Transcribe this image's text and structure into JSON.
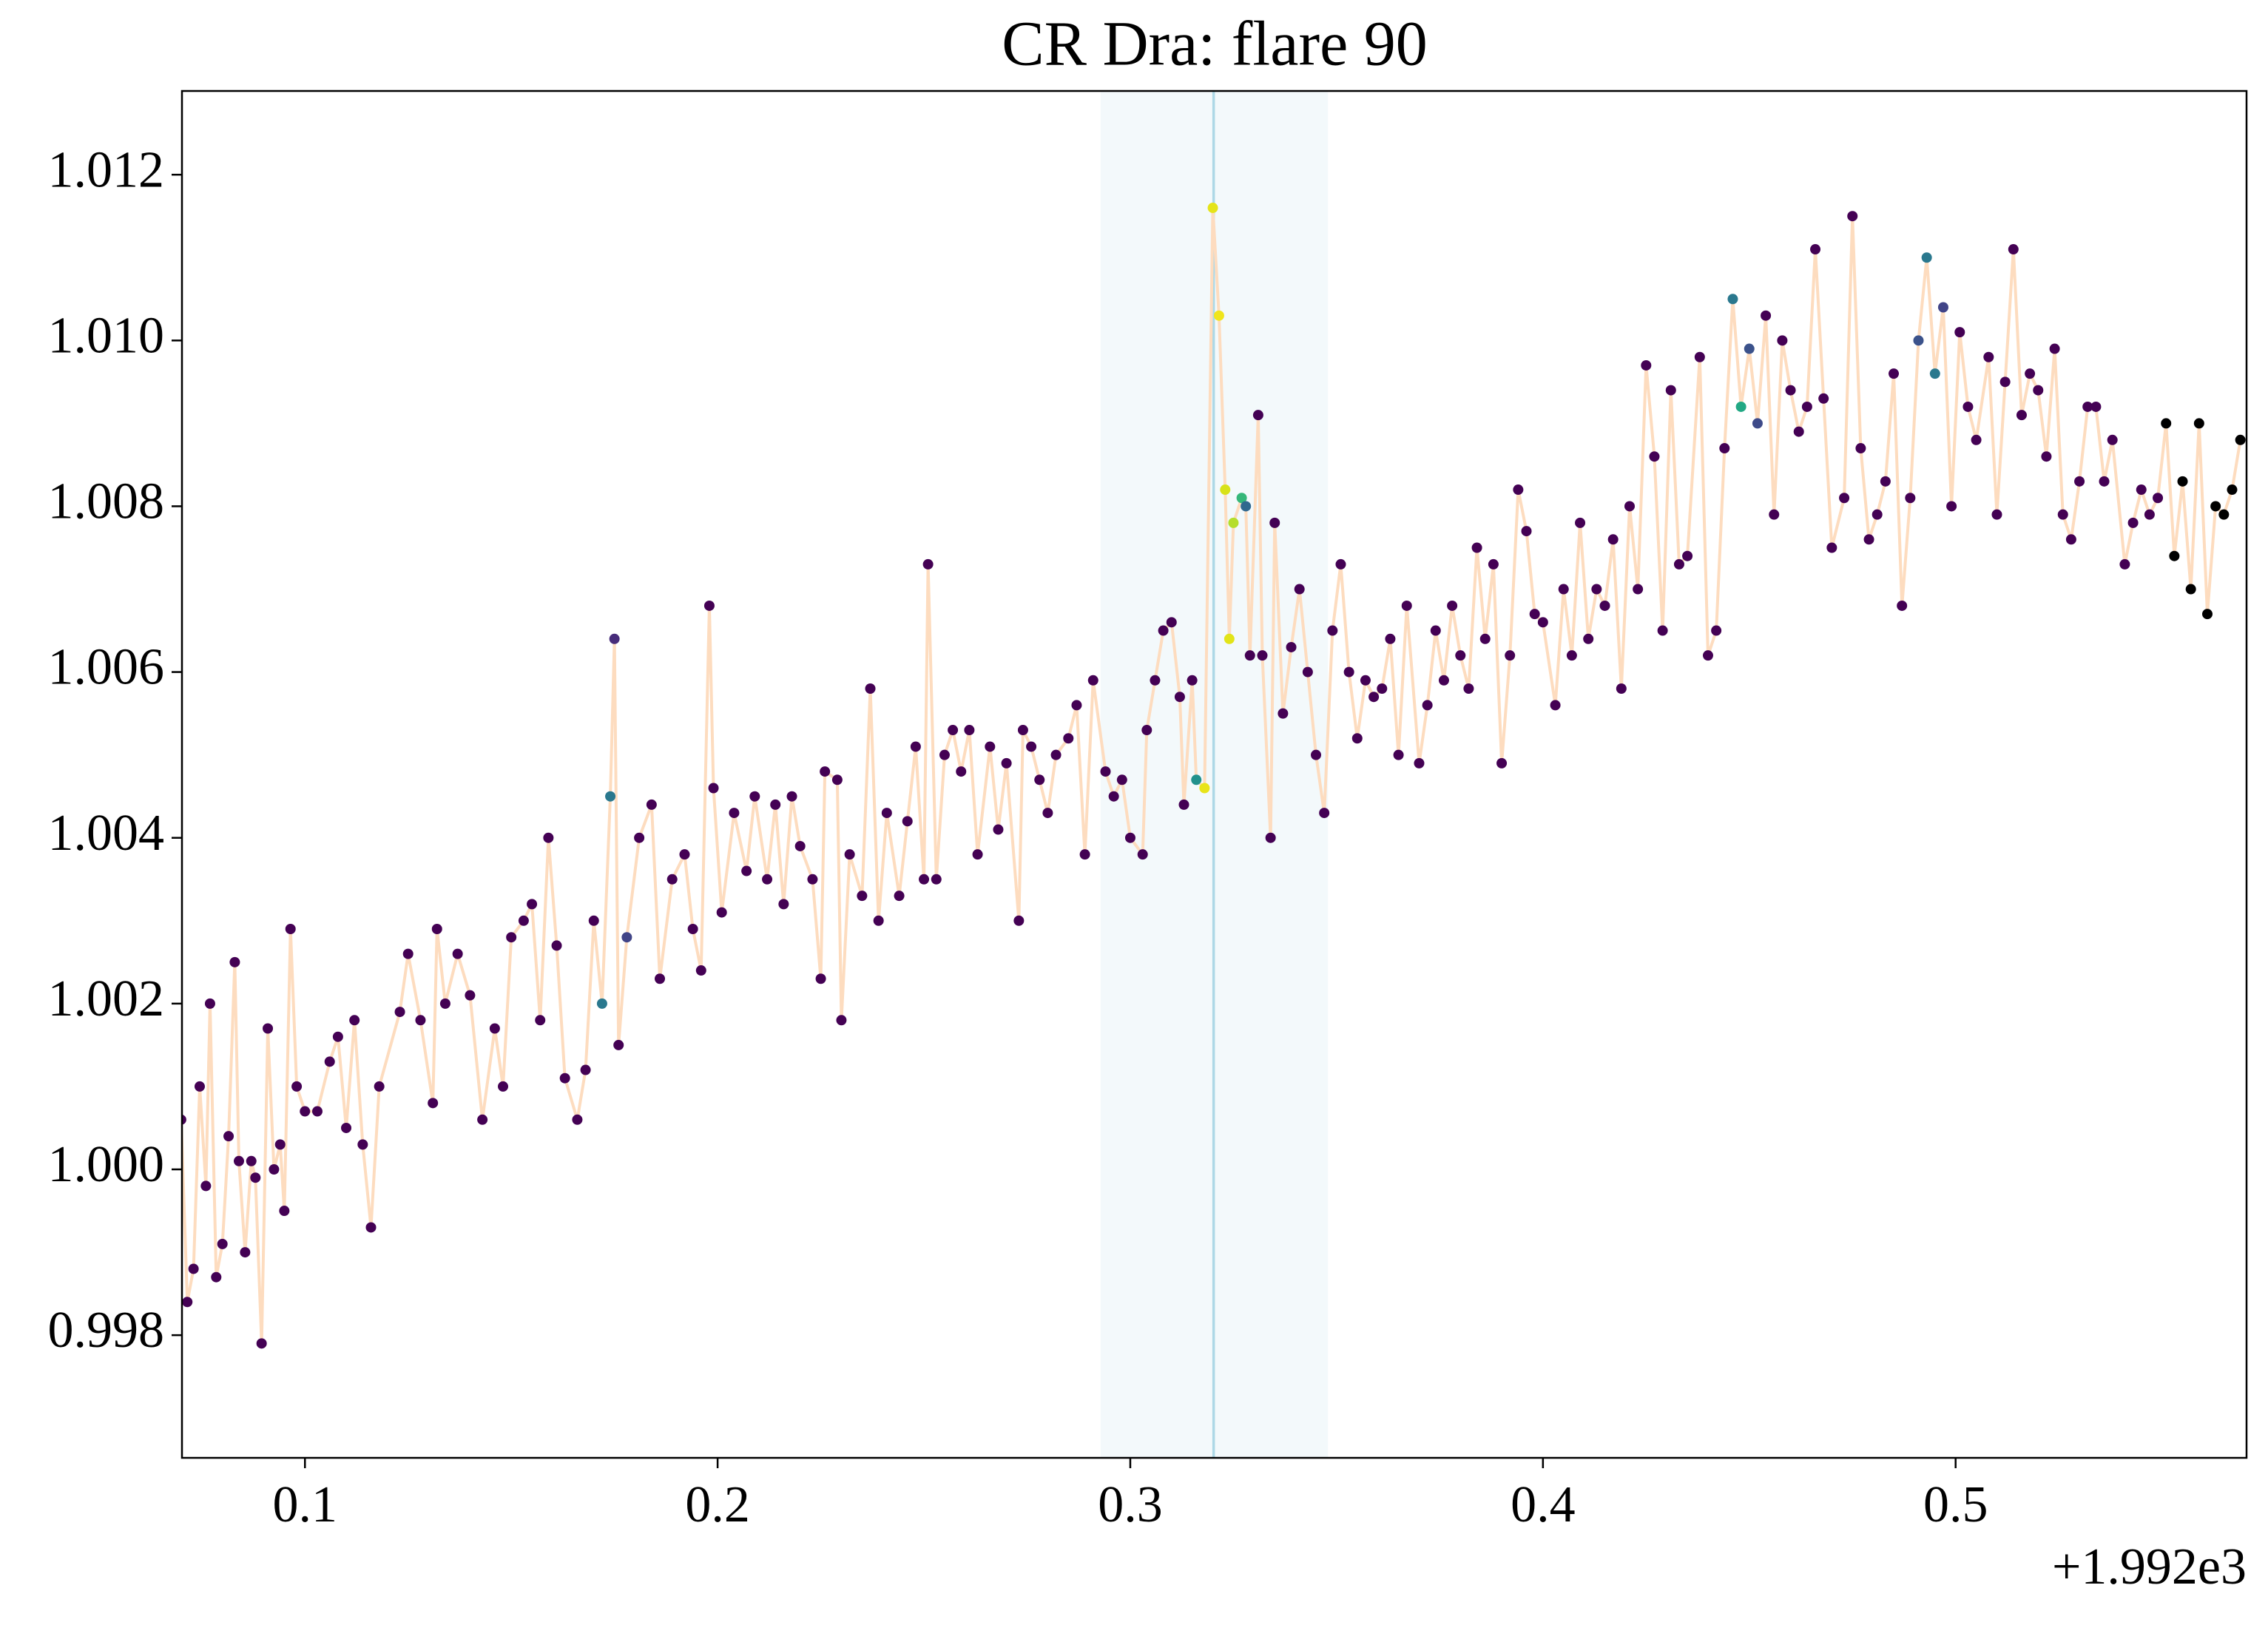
{
  "chart_data": {
    "type": "scatter",
    "title": "CR Dra: flare 90",
    "x_offset_label": "+1.992e3",
    "x": [
      0.07,
      0.0715,
      0.073,
      0.0745,
      0.076,
      0.077,
      0.0785,
      0.08,
      0.0815,
      0.083,
      0.084,
      0.0855,
      0.087,
      0.088,
      0.0895,
      0.091,
      0.0925,
      0.094,
      0.095,
      0.0965,
      0.098,
      0.1,
      0.103,
      0.106,
      0.108,
      0.11,
      0.112,
      0.114,
      0.116,
      0.118,
      0.123,
      0.125,
      0.128,
      0.131,
      0.132,
      0.134,
      0.137,
      0.14,
      0.143,
      0.146,
      0.148,
      0.15,
      0.153,
      0.155,
      0.157,
      0.159,
      0.161,
      0.163,
      0.166,
      0.168,
      0.17,
      0.172,
      0.174,
      0.175,
      0.176,
      0.178,
      0.181,
      0.184,
      0.186,
      0.189,
      0.192,
      0.194,
      0.196,
      0.198,
      0.199,
      0.201,
      0.204,
      0.207,
      0.209,
      0.212,
      0.214,
      0.216,
      0.218,
      0.22,
      0.223,
      0.225,
      0.226,
      0.229,
      0.23,
      0.232,
      0.235,
      0.237,
      0.239,
      0.241,
      0.244,
      0.246,
      0.248,
      0.25,
      0.251,
      0.253,
      0.255,
      0.257,
      0.259,
      0.261,
      0.263,
      0.266,
      0.268,
      0.27,
      0.273,
      0.274,
      0.276,
      0.278,
      0.28,
      0.282,
      0.285,
      0.287,
      0.289,
      0.291,
      0.294,
      0.296,
      0.298,
      0.3,
      0.303,
      0.304,
      0.306,
      0.308,
      0.31,
      0.312,
      0.313,
      0.315,
      0.316,
      0.318,
      0.32,
      0.3215,
      0.323,
      0.324,
      0.325,
      0.327,
      0.328,
      0.329,
      0.331,
      0.332,
      0.334,
      0.335,
      0.337,
      0.339,
      0.341,
      0.343,
      0.345,
      0.347,
      0.349,
      0.351,
      0.353,
      0.355,
      0.357,
      0.359,
      0.361,
      0.363,
      0.365,
      0.367,
      0.37,
      0.372,
      0.374,
      0.376,
      0.378,
      0.38,
      0.382,
      0.384,
      0.386,
      0.388,
      0.39,
      0.392,
      0.394,
      0.396,
      0.398,
      0.4,
      0.403,
      0.405,
      0.407,
      0.409,
      0.411,
      0.413,
      0.415,
      0.417,
      0.419,
      0.421,
      0.423,
      0.425,
      0.427,
      0.429,
      0.431,
      0.433,
      0.435,
      0.438,
      0.44,
      0.442,
      0.444,
      0.446,
      0.448,
      0.45,
      0.452,
      0.454,
      0.456,
      0.458,
      0.46,
      0.462,
      0.464,
      0.466,
      0.468,
      0.47,
      0.473,
      0.475,
      0.477,
      0.479,
      0.481,
      0.483,
      0.485,
      0.487,
      0.489,
      0.491,
      0.493,
      0.495,
      0.497,
      0.499,
      0.501,
      0.503,
      0.505,
      0.508,
      0.51,
      0.512,
      0.514,
      0.516,
      0.518,
      0.52,
      0.522,
      0.524,
      0.526,
      0.528,
      0.53,
      0.532,
      0.534,
      0.536,
      0.538,
      0.541,
      0.543,
      0.545,
      0.547,
      0.549,
      0.551,
      0.553,
      0.555,
      0.557,
      0.559,
      0.561,
      0.563,
      0.565,
      0.567,
      0.569
    ],
    "values": [
      1.0006,
      0.9984,
      0.9988,
      1.001,
      0.9998,
      1.002,
      0.9987,
      0.9991,
      1.0004,
      1.0025,
      1.0001,
      0.999,
      1.0001,
      0.9999,
      0.9979,
      1.0017,
      1.0,
      1.0003,
      0.9995,
      1.0029,
      1.001,
      1.0007,
      1.0007,
      1.0013,
      1.0016,
      1.0005,
      1.0018,
      1.0003,
      0.9993,
      1.001,
      1.0019,
      1.0026,
      1.0018,
      1.0008,
      1.0029,
      1.002,
      1.0026,
      1.0021,
      1.0006,
      1.0017,
      1.001,
      1.0028,
      1.003,
      1.0032,
      1.0018,
      1.004,
      1.0027,
      1.0011,
      1.0006,
      1.0012,
      1.003,
      1.002,
      1.0045,
      1.0064,
      1.0015,
      1.0028,
      1.004,
      1.0044,
      1.0023,
      1.0035,
      1.0038,
      1.0029,
      1.0024,
      1.0068,
      1.0046,
      1.0031,
      1.0043,
      1.0036,
      1.0045,
      1.0035,
      1.0044,
      1.0032,
      1.0045,
      1.0039,
      1.0035,
      1.0023,
      1.0048,
      1.0047,
      1.0018,
      1.0038,
      1.0033,
      1.0058,
      1.003,
      1.0043,
      1.0033,
      1.0042,
      1.0051,
      1.0035,
      1.0073,
      1.0035,
      1.005,
      1.0053,
      1.0048,
      1.0053,
      1.0038,
      1.0051,
      1.0041,
      1.0049,
      1.003,
      1.0053,
      1.0051,
      1.0047,
      1.0043,
      1.005,
      1.0052,
      1.0056,
      1.0038,
      1.0059,
      1.0048,
      1.0045,
      1.0047,
      1.004,
      1.0038,
      1.0053,
      1.0059,
      1.0065,
      1.0066,
      1.0057,
      1.0044,
      1.0059,
      1.0047,
      1.0046,
      1.0116,
      1.0103,
      1.0082,
      1.0064,
      1.0078,
      1.0081,
      1.008,
      1.0062,
      1.0091,
      1.0062,
      1.004,
      1.0078,
      1.0055,
      1.0063,
      1.007,
      1.006,
      1.005,
      1.0043,
      1.0065,
      1.0073,
      1.006,
      1.0052,
      1.0059,
      1.0057,
      1.0058,
      1.0064,
      1.005,
      1.0068,
      1.0049,
      1.0056,
      1.0065,
      1.0059,
      1.0068,
      1.0062,
      1.0058,
      1.0075,
      1.0064,
      1.0073,
      1.0049,
      1.0062,
      1.0082,
      1.0077,
      1.0067,
      1.0066,
      1.0056,
      1.007,
      1.0062,
      1.0078,
      1.0064,
      1.007,
      1.0068,
      1.0076,
      1.0058,
      1.008,
      1.007,
      1.0097,
      1.0086,
      1.0065,
      1.0094,
      1.0073,
      1.0074,
      1.0098,
      1.0062,
      1.0065,
      1.0087,
      1.0105,
      1.0092,
      1.0099,
      1.009,
      1.0103,
      1.0079,
      1.01,
      1.0094,
      1.0089,
      1.0092,
      1.0111,
      1.0093,
      1.0075,
      1.0081,
      1.0115,
      1.0087,
      1.0076,
      1.0079,
      1.0083,
      1.0096,
      1.0068,
      1.0081,
      1.01,
      1.011,
      1.0096,
      1.0104,
      1.008,
      1.0101,
      1.0092,
      1.0088,
      1.0098,
      1.0079,
      1.0095,
      1.0111,
      1.0091,
      1.0096,
      1.0094,
      1.0086,
      1.0099,
      1.0079,
      1.0076,
      1.0083,
      1.0092,
      1.0092,
      1.0083,
      1.0088,
      1.0073,
      1.0078,
      1.0082,
      1.0079,
      1.0081,
      1.009,
      1.0074,
      1.0083,
      1.007,
      1.009,
      1.0067,
      1.008,
      1.0079,
      1.0082,
      1.0088
    ],
    "point_colors": [
      "#440154",
      "#440154",
      "#440154",
      "#440154",
      "#440154",
      "#440154",
      "#440154",
      "#440154",
      "#440154",
      "#440154",
      "#440154",
      "#440154",
      "#440154",
      "#440154",
      "#440154",
      "#440154",
      "#440154",
      "#440154",
      "#440154",
      "#440154",
      "#440154",
      "#440154",
      "#440154",
      "#440154",
      "#440154",
      "#440154",
      "#440154",
      "#440154",
      "#440154",
      "#440154",
      "#440154",
      "#440154",
      "#440154",
      "#440154",
      "#440154",
      "#440154",
      "#440154",
      "#440154",
      "#440154",
      "#440154",
      "#440154",
      "#440154",
      "#440154",
      "#440154",
      "#440154",
      "#440154",
      "#440154",
      "#440154",
      "#440154",
      "#440154",
      "#440154",
      "#2a788e",
      "#2a788e",
      "#472c7a",
      "#440154",
      "#414487",
      "#440154",
      "#440154",
      "#440154",
      "#440154",
      "#440154",
      "#440154",
      "#440154",
      "#440154",
      "#440154",
      "#440154",
      "#440154",
      "#440154",
      "#440154",
      "#440154",
      "#440154",
      "#440154",
      "#440154",
      "#440154",
      "#440154",
      "#440154",
      "#440154",
      "#440154",
      "#440154",
      "#440154",
      "#440154",
      "#440154",
      "#440154",
      "#440154",
      "#440154",
      "#440154",
      "#440154",
      "#440154",
      "#440154",
      "#440154",
      "#440154",
      "#440154",
      "#440154",
      "#440154",
      "#440154",
      "#440154",
      "#440154",
      "#440154",
      "#440154",
      "#440154",
      "#440154",
      "#440154",
      "#440154",
      "#440154",
      "#440154",
      "#440154",
      "#440154",
      "#440154",
      "#440154",
      "#440154",
      "#440154",
      "#440154",
      "#440154",
      "#440154",
      "#440154",
      "#440154",
      "#440154",
      "#440154",
      "#440154",
      "#440154",
      "#21918c",
      "#e8e419",
      "#e5e419",
      "#f0e51c",
      "#d8e219",
      "#e2e418",
      "#b5de2b",
      "#35b779",
      "#31688e",
      "#440154",
      "#440154",
      "#440154",
      "#440154",
      "#440154",
      "#440154",
      "#440154",
      "#440154",
      "#440154",
      "#440154",
      "#440154",
      "#440154",
      "#440154",
      "#440154",
      "#440154",
      "#440154",
      "#440154",
      "#440154",
      "#440154",
      "#440154",
      "#440154",
      "#440154",
      "#440154",
      "#440154",
      "#440154",
      "#440154",
      "#440154",
      "#440154",
      "#440154",
      "#440154",
      "#440154",
      "#440154",
      "#440154",
      "#440154",
      "#440154",
      "#440154",
      "#440154",
      "#440154",
      "#440154",
      "#440154",
      "#440154",
      "#440154",
      "#440154",
      "#440154",
      "#440154",
      "#440154",
      "#440154",
      "#440154",
      "#440154",
      "#440154",
      "#440154",
      "#440154",
      "#440154",
      "#440154",
      "#440154",
      "#440154",
      "#440154",
      "#440154",
      "#2a788e",
      "#22a884",
      "#3b528b",
      "#3e4a89",
      "#440154",
      "#440154",
      "#440154",
      "#440154",
      "#440154",
      "#440154",
      "#440154",
      "#440154",
      "#440154",
      "#440154",
      "#440154",
      "#440154",
      "#440154",
      "#440154",
      "#440154",
      "#440154",
      "#440154",
      "#440154",
      "#3b528b",
      "#2a788e",
      "#2a788e",
      "#414487",
      "#440154",
      "#440154",
      "#440154",
      "#440154",
      "#440154",
      "#440154",
      "#440154",
      "#440154",
      "#440154",
      "#440154",
      "#440154",
      "#440154",
      "#440154",
      "#440154",
      "#440154",
      "#440154",
      "#440154",
      "#440154",
      "#440154",
      "#440154",
      "#440154",
      "#440154",
      "#440154",
      "#440154",
      "#440154"
    ],
    "line_color": "#fddcbf",
    "axvspan": [
      0.2928,
      0.3479
    ],
    "axvspan_color": "#add8e6",
    "axvline": 0.3202,
    "axvline_color": "#add8e6",
    "xlim": [
      0.0702,
      0.5705
    ],
    "xticks": [
      0.1,
      0.2,
      0.3,
      0.4,
      0.5
    ],
    "ylim": [
      0.99652,
      1.01301
    ],
    "yticks": [
      0.998,
      {
        "value": 1.0,
        "label": "1.000"
      },
      1.002,
      1.004,
      1.006,
      1.008,
      {
        "value": 1.01,
        "label": "1.010"
      },
      1.012
    ],
    "grid": false
  }
}
